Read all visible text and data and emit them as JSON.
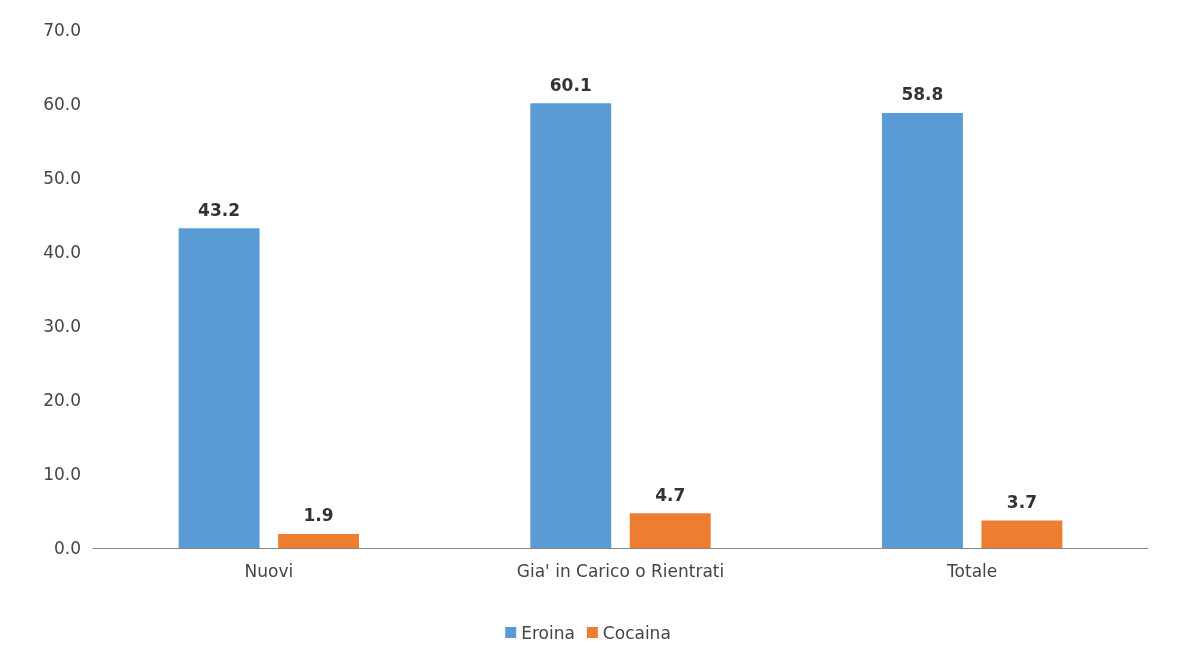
{
  "chart_data": {
    "type": "bar",
    "categories": [
      "Nuovi",
      "Gia' in Carico o Rientrati",
      "Totale"
    ],
    "series": [
      {
        "name": "Eroina",
        "color": "#5b9bd5",
        "values": [
          43.2,
          60.1,
          58.8
        ]
      },
      {
        "name": "Cocaina",
        "color": "#ed7d31",
        "values": [
          1.9,
          4.7,
          3.7
        ]
      }
    ],
    "ylim": [
      0,
      70
    ],
    "yticks": [
      {
        "value": 0,
        "label": "0.0"
      },
      {
        "value": 10,
        "label": "10.0"
      },
      {
        "value": 20,
        "label": "20.0"
      },
      {
        "value": 30,
        "label": "30.0"
      },
      {
        "value": 40,
        "label": "40.0"
      },
      {
        "value": 50,
        "label": "50.0"
      },
      {
        "value": 60,
        "label": "60.0"
      },
      {
        "value": 70,
        "label": "70.0"
      }
    ],
    "grid": false,
    "legend": "bottom",
    "data_labels": true
  }
}
